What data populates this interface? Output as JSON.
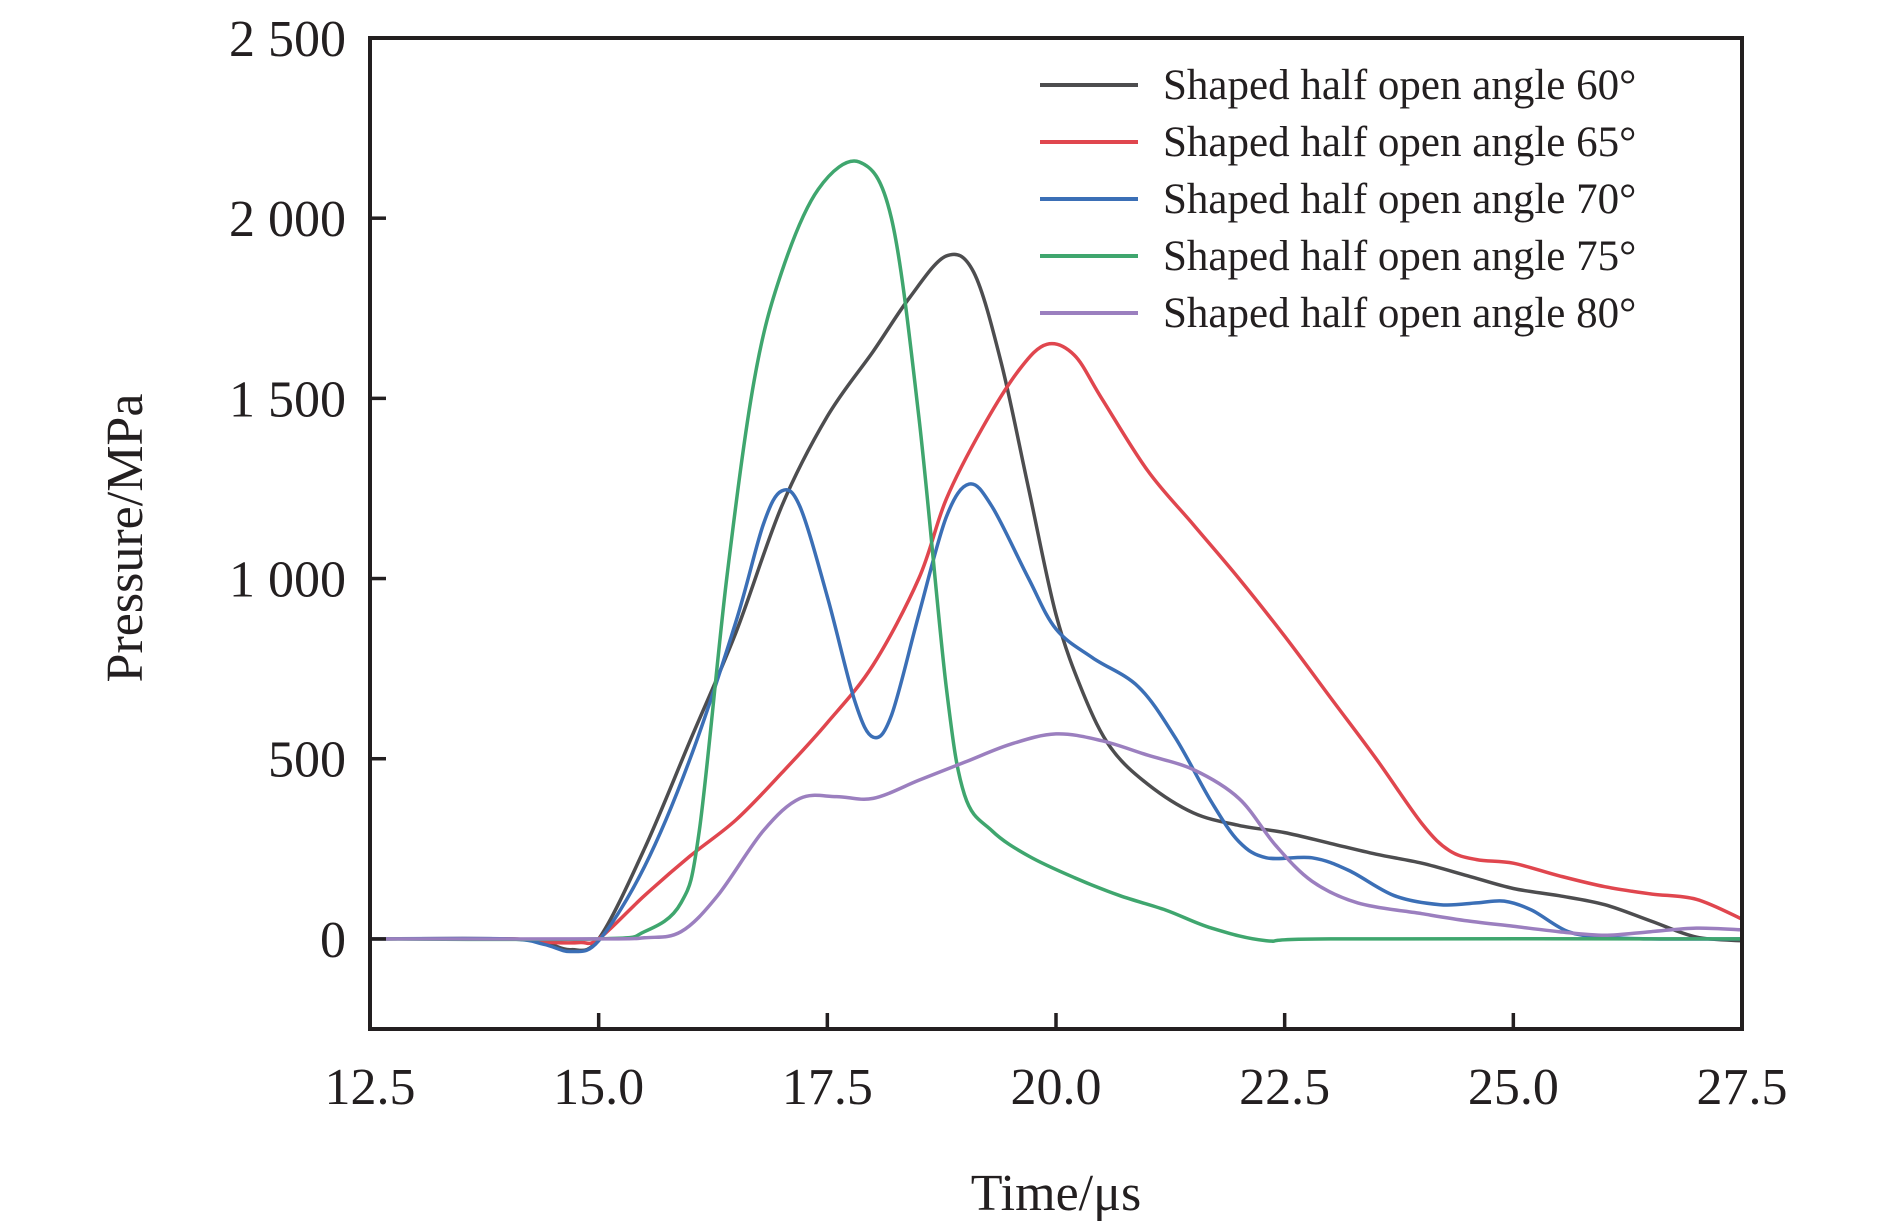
{
  "chart_data": {
    "type": "line",
    "title": "",
    "xlabel": "Time/μs",
    "ylabel": "Pressure/MPa",
    "xlim": [
      12.5,
      27.5
    ],
    "ylim": [
      -250,
      2500
    ],
    "xticks": [
      12.5,
      15.0,
      17.5,
      20.0,
      22.5,
      25.0,
      27.5
    ],
    "xtick_labels": [
      "12.5",
      "15.0",
      "17.5",
      "20.0",
      "22.5",
      "25.0",
      "27.5"
    ],
    "yticks": [
      0,
      500,
      1000,
      1500,
      2000,
      2500
    ],
    "ytick_labels": [
      "0",
      "500",
      "1 000",
      "1 500",
      "2 000",
      "2 500"
    ],
    "grid": false,
    "legend_position": "top-right",
    "series": [
      {
        "name": "Shaped half open angle 60°",
        "color": "#4d4d4f",
        "points": [
          [
            12.5,
            0
          ],
          [
            14.0,
            0
          ],
          [
            14.4,
            -10
          ],
          [
            14.7,
            -30
          ],
          [
            15.0,
            0
          ],
          [
            15.5,
            250
          ],
          [
            16.0,
            550
          ],
          [
            16.5,
            850
          ],
          [
            17.0,
            1200
          ],
          [
            17.5,
            1450
          ],
          [
            18.0,
            1630
          ],
          [
            18.4,
            1780
          ],
          [
            18.8,
            1895
          ],
          [
            19.1,
            1850
          ],
          [
            19.4,
            1600
          ],
          [
            19.7,
            1250
          ],
          [
            20.0,
            900
          ],
          [
            20.3,
            680
          ],
          [
            20.6,
            530
          ],
          [
            21.0,
            430
          ],
          [
            21.5,
            350
          ],
          [
            22.0,
            315
          ],
          [
            22.5,
            295
          ],
          [
            23.0,
            265
          ],
          [
            23.5,
            235
          ],
          [
            24.0,
            210
          ],
          [
            24.5,
            175
          ],
          [
            25.0,
            140
          ],
          [
            25.5,
            120
          ],
          [
            26.0,
            95
          ],
          [
            26.5,
            50
          ],
          [
            27.0,
            5
          ],
          [
            27.5,
            -5
          ]
        ]
      },
      {
        "name": "Shaped half open angle 65°",
        "color": "#e0464e",
        "points": [
          [
            12.5,
            0
          ],
          [
            14.0,
            0
          ],
          [
            14.5,
            -10
          ],
          [
            14.8,
            -10
          ],
          [
            15.0,
            0
          ],
          [
            15.5,
            120
          ],
          [
            16.0,
            230
          ],
          [
            16.5,
            330
          ],
          [
            17.0,
            460
          ],
          [
            17.5,
            600
          ],
          [
            18.0,
            760
          ],
          [
            18.5,
            1000
          ],
          [
            18.8,
            1220
          ],
          [
            19.2,
            1420
          ],
          [
            19.6,
            1580
          ],
          [
            19.9,
            1650
          ],
          [
            20.2,
            1620
          ],
          [
            20.5,
            1500
          ],
          [
            21.0,
            1300
          ],
          [
            21.5,
            1150
          ],
          [
            22.0,
            1000
          ],
          [
            22.5,
            840
          ],
          [
            23.0,
            670
          ],
          [
            23.5,
            500
          ],
          [
            24.0,
            320
          ],
          [
            24.3,
            245
          ],
          [
            24.6,
            220
          ],
          [
            25.0,
            210
          ],
          [
            25.5,
            175
          ],
          [
            26.0,
            145
          ],
          [
            26.5,
            125
          ],
          [
            27.0,
            110
          ],
          [
            27.5,
            55
          ]
        ]
      },
      {
        "name": "Shaped half open angle 70°",
        "color": "#3b6fb6",
        "points": [
          [
            12.5,
            0
          ],
          [
            14.0,
            0
          ],
          [
            14.4,
            -15
          ],
          [
            14.7,
            -35
          ],
          [
            15.0,
            -5
          ],
          [
            15.5,
            200
          ],
          [
            16.0,
            500
          ],
          [
            16.5,
            880
          ],
          [
            16.8,
            1150
          ],
          [
            17.0,
            1243
          ],
          [
            17.2,
            1200
          ],
          [
            17.5,
            950
          ],
          [
            17.8,
            660
          ],
          [
            18.0,
            560
          ],
          [
            18.2,
            620
          ],
          [
            18.5,
            900
          ],
          [
            18.8,
            1170
          ],
          [
            19.05,
            1262
          ],
          [
            19.3,
            1200
          ],
          [
            19.7,
            1000
          ],
          [
            20.0,
            860
          ],
          [
            20.4,
            780
          ],
          [
            20.9,
            700
          ],
          [
            21.3,
            560
          ],
          [
            21.7,
            380
          ],
          [
            22.0,
            270
          ],
          [
            22.3,
            225
          ],
          [
            22.8,
            225
          ],
          [
            23.2,
            190
          ],
          [
            23.7,
            120
          ],
          [
            24.2,
            95
          ],
          [
            24.6,
            100
          ],
          [
            24.9,
            105
          ],
          [
            25.2,
            80
          ],
          [
            25.6,
            20
          ],
          [
            26.0,
            5
          ],
          [
            26.5,
            0
          ],
          [
            27.5,
            0
          ]
        ]
      },
      {
        "name": "Shaped half open angle 75°",
        "color": "#3fa66e",
        "points": [
          [
            12.5,
            0
          ],
          [
            15.0,
            0
          ],
          [
            15.5,
            20
          ],
          [
            15.9,
            100
          ],
          [
            16.1,
            300
          ],
          [
            16.4,
            1000
          ],
          [
            16.7,
            1550
          ],
          [
            17.0,
            1850
          ],
          [
            17.4,
            2080
          ],
          [
            17.85,
            2156
          ],
          [
            18.2,
            2000
          ],
          [
            18.5,
            1450
          ],
          [
            18.8,
            700
          ],
          [
            19.0,
            400
          ],
          [
            19.3,
            300
          ],
          [
            19.7,
            230
          ],
          [
            20.2,
            170
          ],
          [
            20.7,
            120
          ],
          [
            21.2,
            80
          ],
          [
            21.7,
            30
          ],
          [
            22.3,
            -5
          ],
          [
            23.0,
            0
          ],
          [
            27.5,
            0
          ]
        ]
      },
      {
        "name": "Shaped half open angle 80°",
        "color": "#9b7fbf",
        "points": [
          [
            12.5,
            0
          ],
          [
            15.0,
            0
          ],
          [
            15.5,
            3
          ],
          [
            15.9,
            20
          ],
          [
            16.3,
            120
          ],
          [
            16.8,
            300
          ],
          [
            17.2,
            390
          ],
          [
            17.6,
            395
          ],
          [
            18.0,
            390
          ],
          [
            18.5,
            440
          ],
          [
            19.0,
            490
          ],
          [
            19.5,
            540
          ],
          [
            20.0,
            569
          ],
          [
            20.5,
            550
          ],
          [
            21.0,
            510
          ],
          [
            21.5,
            470
          ],
          [
            22.0,
            390
          ],
          [
            22.4,
            260
          ],
          [
            22.8,
            160
          ],
          [
            23.3,
            100
          ],
          [
            24.0,
            70
          ],
          [
            24.5,
            50
          ],
          [
            25.0,
            35
          ],
          [
            25.5,
            20
          ],
          [
            26.0,
            10
          ],
          [
            26.5,
            20
          ],
          [
            27.0,
            30
          ],
          [
            27.5,
            25
          ]
        ]
      }
    ]
  }
}
